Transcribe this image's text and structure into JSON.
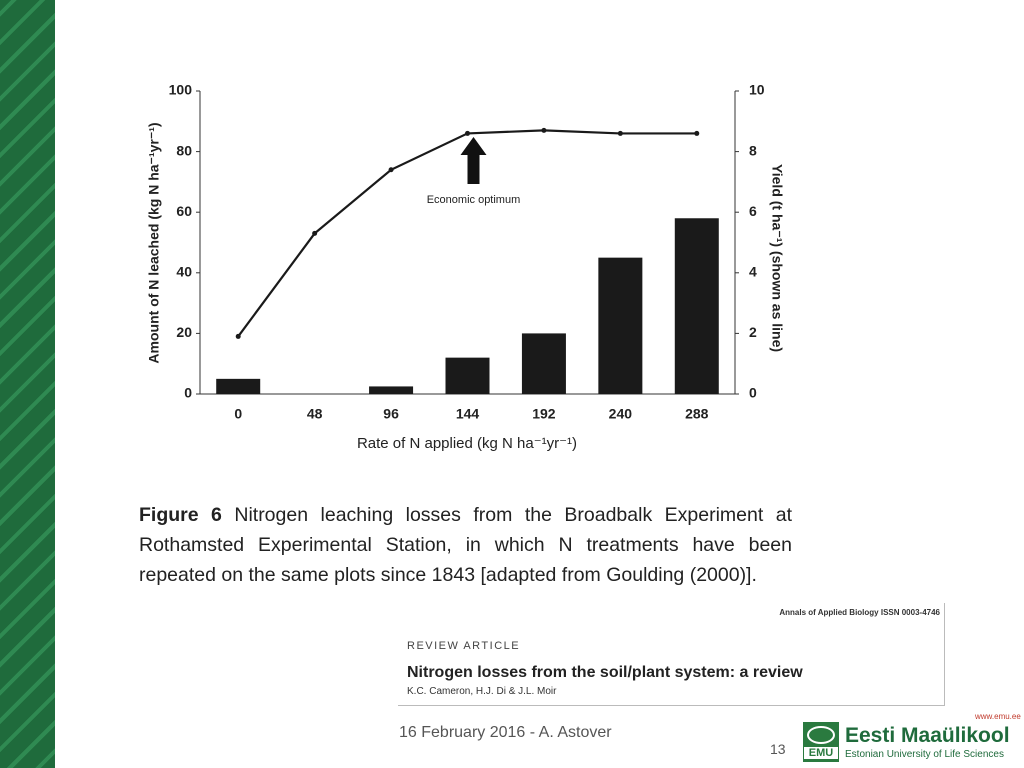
{
  "chart_data": {
    "type": "bar-line",
    "categories": [
      "0",
      "48",
      "96",
      "144",
      "192",
      "240",
      "288"
    ],
    "xlabel": "Rate of N applied (kg N ha⁻¹yr⁻¹)",
    "ylabel": "Amount of N leached (kg N ha⁻¹yr⁻¹)",
    "y2label": "Yield (t ha⁻¹) (shown as line)",
    "series": [
      {
        "type": "bar",
        "color": "#1a1a1a",
        "values": [
          5,
          0,
          2.5,
          12,
          20,
          45,
          58
        ]
      },
      {
        "type": "line",
        "axis": "y2",
        "color": "#1a1a1a",
        "values": [
          1.9,
          5.3,
          7.4,
          8.6,
          8.7,
          8.6,
          8.6
        ]
      }
    ],
    "ylim": [
      0,
      100
    ],
    "yticks": [
      0,
      20,
      40,
      60,
      80,
      100
    ],
    "y2lim": [
      0,
      10
    ],
    "y2ticks": [
      0,
      2,
      4,
      6,
      8,
      10
    ],
    "annotation": {
      "text": "Economic optimum",
      "category": 3
    }
  },
  "caption": {
    "label": "Figure 6",
    "text": "Nitrogen leaching losses from the Broadbalk Experiment at Rothamsted Experimental Station, in which N treatments have been repeated on the same plots since 1843 [adapted from Goulding (2000)]."
  },
  "citation": {
    "journal": "Annals of Applied Biology ISSN 0003-4746",
    "kind": "REVIEW ARTICLE",
    "title": "Nitrogen losses from the soil/plant system: a review",
    "authors": "K.C. Cameron, H.J. Di & J.L. Moir"
  },
  "footer": {
    "date": "16 February 2016 - A. Astover",
    "page": "13",
    "url": "www.emu.ee",
    "logo_short": "EMU",
    "logo_name": "Eesti Maaülikool",
    "logo_sub": "Estonian University of Life Sciences"
  }
}
